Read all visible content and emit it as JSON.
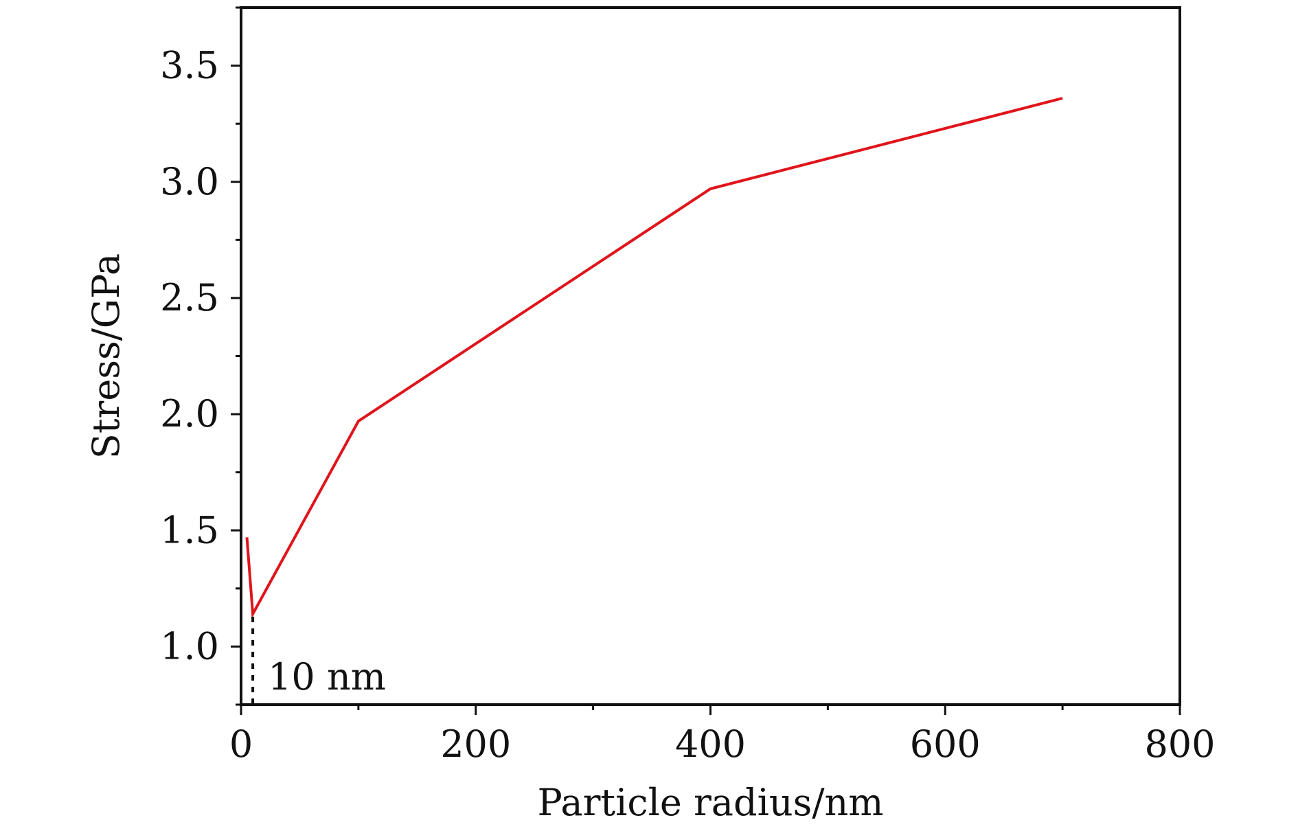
{
  "chart_data": {
    "type": "line",
    "title": "",
    "xlabel": "Particle radius/nm",
    "ylabel": "Stress/GPa",
    "xlim": [
      0,
      800
    ],
    "ylim": [
      0.75,
      3.75
    ],
    "x_ticks": [
      0,
      200,
      400,
      600,
      800
    ],
    "x_tick_labels": [
      "0",
      "200",
      "400",
      "600",
      "800"
    ],
    "y_ticks": [
      1.0,
      1.5,
      2.0,
      2.5,
      3.0,
      3.5
    ],
    "y_tick_labels": [
      "1.0",
      "1.5",
      "2.0",
      "2.5",
      "3.0",
      "3.5"
    ],
    "grid": false,
    "legend": "none",
    "series": [
      {
        "color": "#e0141b",
        "x": [
          5,
          10,
          100,
          400,
          700
        ],
        "y": [
          1.47,
          1.14,
          1.97,
          2.97,
          3.36
        ]
      }
    ],
    "annotation": {
      "text": "10 nm",
      "x": 10
    }
  }
}
